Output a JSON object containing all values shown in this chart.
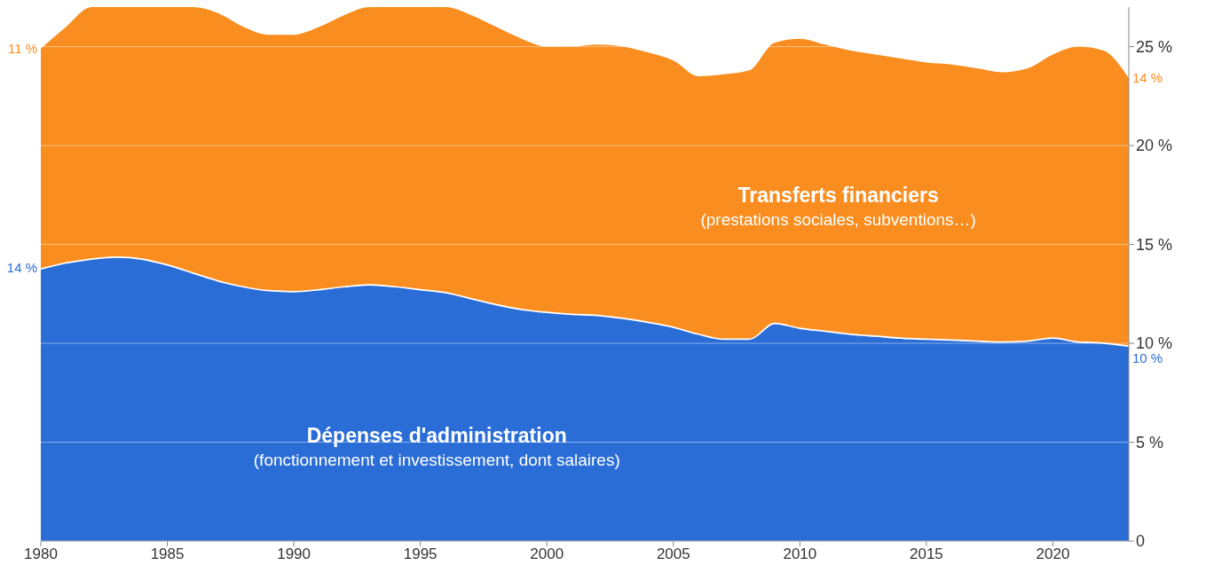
{
  "chart_data": {
    "type": "area",
    "stacked": true,
    "x": [
      1980,
      1981,
      1982,
      1983,
      1984,
      1985,
      1986,
      1987,
      1988,
      1989,
      1990,
      1991,
      1992,
      1993,
      1994,
      1995,
      1996,
      1997,
      1998,
      1999,
      2000,
      2001,
      2002,
      2003,
      2004,
      2005,
      2006,
      2007,
      2008,
      2009,
      2010,
      2011,
      2012,
      2013,
      2014,
      2015,
      2016,
      2017,
      2018,
      2019,
      2020,
      2021,
      2022,
      2023
    ],
    "series": [
      {
        "name": "Dépenses d'administration",
        "color": "#2a6dd6",
        "values": [
          13.8,
          14.1,
          14.3,
          14.4,
          14.3,
          14.0,
          13.6,
          13.2,
          12.9,
          12.7,
          12.65,
          12.75,
          12.9,
          13.0,
          12.9,
          12.75,
          12.6,
          12.3,
          12.0,
          11.75,
          11.6,
          11.5,
          11.45,
          11.3,
          11.1,
          10.85,
          10.5,
          10.25,
          10.25,
          11.05,
          10.8,
          10.65,
          10.5,
          10.4,
          10.3,
          10.25,
          10.2,
          10.15,
          10.1,
          10.15,
          10.3,
          10.1,
          10.05,
          9.9
        ]
      },
      {
        "name": "Transferts financiers",
        "color": "#f98d1f",
        "values": [
          11.1,
          11.9,
          12.7,
          12.6,
          12.7,
          13.0,
          13.4,
          13.5,
          13.1,
          12.9,
          12.95,
          13.25,
          13.7,
          14.0,
          14.1,
          14.25,
          14.4,
          14.3,
          14.0,
          13.65,
          13.4,
          13.5,
          13.65,
          13.7,
          13.6,
          13.45,
          13.0,
          13.35,
          13.55,
          14.15,
          14.6,
          14.45,
          14.3,
          14.2,
          14.1,
          13.95,
          13.9,
          13.75,
          13.6,
          13.75,
          14.3,
          14.9,
          14.75,
          13.5
        ]
      }
    ],
    "xlim": [
      1980,
      2023
    ],
    "xticks": [
      1980,
      1985,
      1990,
      1995,
      2000,
      2005,
      2010,
      2015,
      2020
    ],
    "ylim": [
      0,
      27
    ],
    "yticks": [
      0,
      {
        "value": 5,
        "label": "5 %"
      },
      {
        "value": 10,
        "label": "10 %"
      },
      {
        "value": 15,
        "label": "15 %"
      },
      {
        "value": 20,
        "label": "20 %"
      },
      {
        "value": 25,
        "label": "25 %"
      }
    ],
    "grid": "y",
    "annotations": [
      "11 %",
      "14 %",
      "14 %",
      "10 %",
      "(fonctionnement et investissement, dont salaires)",
      "(prestations sociales, subventions…)"
    ]
  }
}
